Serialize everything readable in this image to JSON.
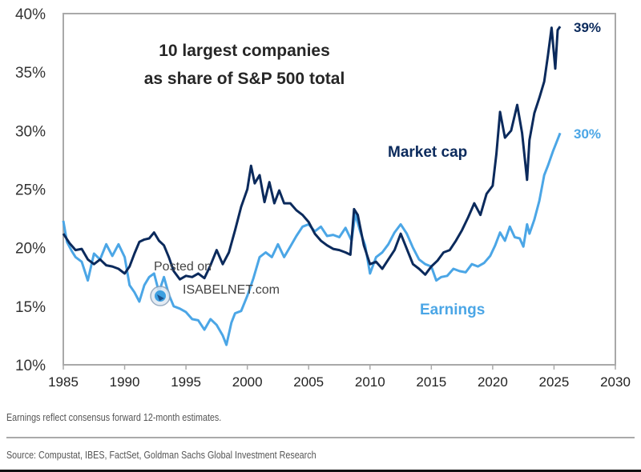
{
  "chart_data": {
    "type": "line",
    "title": "10 largest companies as share of S&P 500 total",
    "title_lines": [
      "10 largest companies",
      "as share of S&P 500 total"
    ],
    "xlabel": "",
    "ylabel": "",
    "xlim": [
      1985,
      2030
    ],
    "ylim": [
      10,
      40
    ],
    "x_ticks": [
      "1985",
      "1990",
      "1995",
      "2000",
      "2005",
      "2010",
      "2015",
      "2020",
      "2025",
      "2030"
    ],
    "y_ticks": [
      "10%",
      "15%",
      "20%",
      "25%",
      "30%",
      "35%",
      "40%"
    ],
    "grid": false,
    "series": [
      {
        "name": "Market cap",
        "color": "#0b2a5c",
        "end_label": "39%",
        "points": [
          [
            1985.0,
            21.2
          ],
          [
            1985.5,
            20.4
          ],
          [
            1986.0,
            19.8
          ],
          [
            1986.5,
            19.9
          ],
          [
            1987.0,
            19.0
          ],
          [
            1987.5,
            18.6
          ],
          [
            1988.0,
            19.0
          ],
          [
            1988.5,
            18.5
          ],
          [
            1989.0,
            18.4
          ],
          [
            1989.5,
            18.2
          ],
          [
            1990.0,
            17.8
          ],
          [
            1990.4,
            18.4
          ],
          [
            1990.8,
            19.5
          ],
          [
            1991.2,
            20.5
          ],
          [
            1991.6,
            20.7
          ],
          [
            1992.0,
            20.8
          ],
          [
            1992.4,
            21.3
          ],
          [
            1992.8,
            20.6
          ],
          [
            1993.2,
            20.2
          ],
          [
            1993.6,
            19.2
          ],
          [
            1994.0,
            18.0
          ],
          [
            1994.5,
            17.3
          ],
          [
            1995.0,
            17.6
          ],
          [
            1995.5,
            17.5
          ],
          [
            1996.0,
            17.8
          ],
          [
            1996.5,
            17.4
          ],
          [
            1997.0,
            18.5
          ],
          [
            1997.5,
            19.8
          ],
          [
            1998.0,
            18.6
          ],
          [
            1998.5,
            19.6
          ],
          [
            1999.0,
            21.5
          ],
          [
            1999.5,
            23.5
          ],
          [
            2000.0,
            25.0
          ],
          [
            2000.3,
            27.0
          ],
          [
            2000.6,
            25.5
          ],
          [
            2001.0,
            26.2
          ],
          [
            2001.4,
            23.9
          ],
          [
            2001.8,
            25.6
          ],
          [
            2002.2,
            23.8
          ],
          [
            2002.6,
            24.9
          ],
          [
            2003.0,
            23.8
          ],
          [
            2003.5,
            23.8
          ],
          [
            2004.0,
            23.2
          ],
          [
            2004.5,
            22.8
          ],
          [
            2005.0,
            22.2
          ],
          [
            2005.5,
            21.2
          ],
          [
            2006.0,
            20.6
          ],
          [
            2006.5,
            20.2
          ],
          [
            2007.0,
            19.9
          ],
          [
            2007.5,
            19.8
          ],
          [
            2008.0,
            19.6
          ],
          [
            2008.4,
            19.4
          ],
          [
            2008.7,
            23.3
          ],
          [
            2009.0,
            22.8
          ],
          [
            2009.5,
            20.2
          ],
          [
            2010.0,
            18.6
          ],
          [
            2010.5,
            18.8
          ],
          [
            2011.0,
            18.2
          ],
          [
            2011.5,
            19.0
          ],
          [
            2012.0,
            19.8
          ],
          [
            2012.5,
            21.2
          ],
          [
            2013.0,
            19.9
          ],
          [
            2013.5,
            18.6
          ],
          [
            2014.0,
            18.2
          ],
          [
            2014.5,
            17.7
          ],
          [
            2015.0,
            18.4
          ],
          [
            2015.5,
            18.9
          ],
          [
            2016.0,
            19.6
          ],
          [
            2016.5,
            19.8
          ],
          [
            2017.0,
            20.6
          ],
          [
            2017.5,
            21.5
          ],
          [
            2018.0,
            22.6
          ],
          [
            2018.5,
            23.8
          ],
          [
            2019.0,
            22.8
          ],
          [
            2019.5,
            24.6
          ],
          [
            2020.0,
            25.3
          ],
          [
            2020.3,
            28.0
          ],
          [
            2020.6,
            31.6
          ],
          [
            2021.0,
            29.4
          ],
          [
            2021.5,
            30.0
          ],
          [
            2022.0,
            32.2
          ],
          [
            2022.4,
            29.8
          ],
          [
            2022.8,
            25.8
          ],
          [
            2023.0,
            29.2
          ],
          [
            2023.4,
            31.5
          ],
          [
            2023.8,
            32.8
          ],
          [
            2024.2,
            34.2
          ],
          [
            2024.5,
            36.4
          ],
          [
            2024.8,
            38.8
          ],
          [
            2025.1,
            35.3
          ],
          [
            2025.3,
            38.6
          ],
          [
            2025.5,
            38.9
          ]
        ]
      },
      {
        "name": "Earnings",
        "color": "#4ba6e6",
        "end_label": "30%",
        "points": [
          [
            1985.0,
            22.3
          ],
          [
            1985.3,
            20.5
          ],
          [
            1985.7,
            19.7
          ],
          [
            1986.0,
            19.2
          ],
          [
            1986.5,
            18.8
          ],
          [
            1987.0,
            17.2
          ],
          [
            1987.5,
            19.5
          ],
          [
            1988.0,
            19.0
          ],
          [
            1988.5,
            20.3
          ],
          [
            1989.0,
            19.3
          ],
          [
            1989.5,
            20.3
          ],
          [
            1990.0,
            19.2
          ],
          [
            1990.4,
            16.8
          ],
          [
            1990.8,
            16.2
          ],
          [
            1991.2,
            15.4
          ],
          [
            1991.6,
            16.8
          ],
          [
            1992.0,
            17.5
          ],
          [
            1992.4,
            17.8
          ],
          [
            1992.8,
            16.2
          ],
          [
            1993.2,
            17.5
          ],
          [
            1993.6,
            16.0
          ],
          [
            1994.0,
            15.0
          ],
          [
            1994.5,
            14.8
          ],
          [
            1995.0,
            14.5
          ],
          [
            1995.5,
            13.9
          ],
          [
            1996.0,
            13.8
          ],
          [
            1996.5,
            13.0
          ],
          [
            1997.0,
            13.9
          ],
          [
            1997.5,
            13.4
          ],
          [
            1998.0,
            12.5
          ],
          [
            1998.3,
            11.7
          ],
          [
            1998.7,
            13.6
          ],
          [
            1999.0,
            14.4
          ],
          [
            1999.5,
            14.6
          ],
          [
            2000.0,
            15.9
          ],
          [
            2000.5,
            17.4
          ],
          [
            2001.0,
            19.2
          ],
          [
            2001.5,
            19.6
          ],
          [
            2002.0,
            19.2
          ],
          [
            2002.5,
            20.3
          ],
          [
            2003.0,
            19.2
          ],
          [
            2003.5,
            20.1
          ],
          [
            2004.0,
            21.0
          ],
          [
            2004.5,
            21.8
          ],
          [
            2005.0,
            22.0
          ],
          [
            2005.5,
            21.4
          ],
          [
            2006.0,
            21.8
          ],
          [
            2006.5,
            21.0
          ],
          [
            2007.0,
            21.1
          ],
          [
            2007.5,
            20.9
          ],
          [
            2008.0,
            21.7
          ],
          [
            2008.5,
            20.6
          ],
          [
            2008.8,
            22.9
          ],
          [
            2009.2,
            21.4
          ],
          [
            2009.6,
            20.2
          ],
          [
            2010.0,
            17.8
          ],
          [
            2010.5,
            19.2
          ],
          [
            2011.0,
            19.6
          ],
          [
            2011.5,
            20.3
          ],
          [
            2012.0,
            21.3
          ],
          [
            2012.5,
            22.0
          ],
          [
            2013.0,
            21.2
          ],
          [
            2013.5,
            20.0
          ],
          [
            2014.0,
            19.0
          ],
          [
            2014.5,
            18.6
          ],
          [
            2015.0,
            18.4
          ],
          [
            2015.4,
            17.2
          ],
          [
            2015.8,
            17.5
          ],
          [
            2016.3,
            17.6
          ],
          [
            2016.8,
            18.2
          ],
          [
            2017.3,
            18.0
          ],
          [
            2017.8,
            17.9
          ],
          [
            2018.3,
            18.6
          ],
          [
            2018.8,
            18.4
          ],
          [
            2019.3,
            18.7
          ],
          [
            2019.8,
            19.3
          ],
          [
            2020.2,
            20.2
          ],
          [
            2020.6,
            21.3
          ],
          [
            2021.0,
            20.6
          ],
          [
            2021.4,
            21.8
          ],
          [
            2021.8,
            20.9
          ],
          [
            2022.2,
            20.8
          ],
          [
            2022.5,
            20.1
          ],
          [
            2022.8,
            22.0
          ],
          [
            2023.0,
            21.2
          ],
          [
            2023.4,
            22.4
          ],
          [
            2023.8,
            24.0
          ],
          [
            2024.2,
            26.2
          ],
          [
            2024.5,
            27.0
          ],
          [
            2024.9,
            28.2
          ],
          [
            2025.2,
            29.0
          ],
          [
            2025.5,
            29.8
          ]
        ]
      }
    ],
    "annotations": [
      {
        "text": "Market cap",
        "series": "Market cap"
      },
      {
        "text": "Earnings",
        "series": "Earnings"
      },
      {
        "text": "39%",
        "series": "Market cap"
      },
      {
        "text": "30%",
        "series": "Earnings"
      }
    ],
    "legend": "none (inline series labels)"
  },
  "watermark": {
    "line1": "Posted on",
    "line2": "ISABELNET.com"
  },
  "footnote": "Earnings reflect consensus forward 12-month estimates.",
  "source": "Source: Compustat, IBES, FactSet, Goldman Sachs Global Investment Research"
}
